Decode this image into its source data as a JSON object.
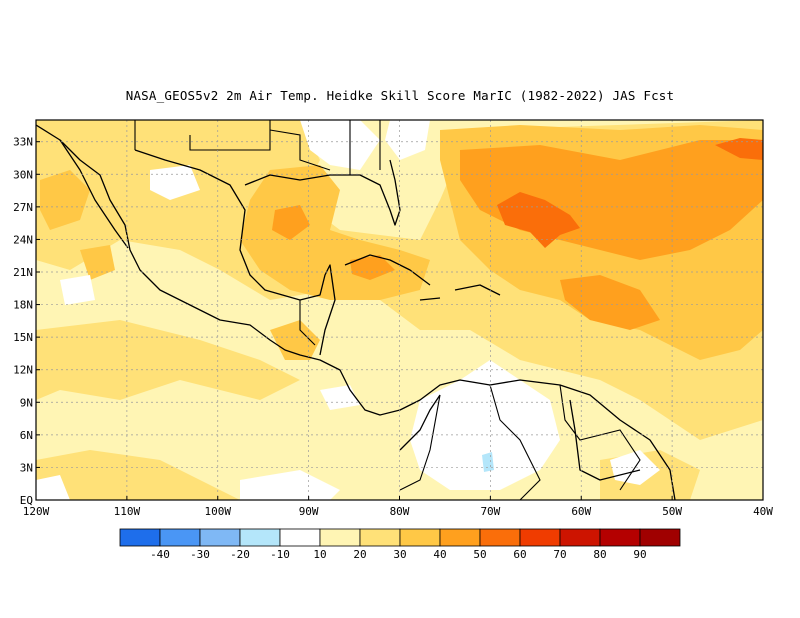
{
  "title": "NASA_GEOS5v2  2m Air Temp. Heidke Skill Score MarIC (1982-2022) JAS Fcst",
  "map": {
    "lat_labels": [
      "33N",
      "30N",
      "27N",
      "24N",
      "21N",
      "18N",
      "15N",
      "12N",
      "9N",
      "6N",
      "3N",
      "EQ"
    ],
    "lat_values": [
      33,
      30,
      27,
      24,
      21,
      18,
      15,
      12,
      9,
      6,
      3,
      0
    ],
    "lon_labels": [
      "120W",
      "110W",
      "100W",
      "90W",
      "80W",
      "70W",
      "60W",
      "50W",
      "40W"
    ],
    "lon_values": [
      -120,
      -110,
      -100,
      -90,
      -80,
      -70,
      -60,
      -50,
      -40
    ],
    "lat_range": [
      0,
      35
    ],
    "lon_range": [
      -120,
      -40
    ],
    "gridlines": "dotted"
  },
  "colorbar": {
    "labels": [
      "-40",
      "-30",
      "-20",
      "-10",
      "10",
      "20",
      "30",
      "40",
      "50",
      "60",
      "70",
      "80",
      "90"
    ],
    "colors": [
      "#1e6eeb",
      "#4a96f5",
      "#7fb8f5",
      "#b4e6fa",
      "#ffffff",
      "#fff5b4",
      "#ffe178",
      "#ffc846",
      "#ffa01e",
      "#fa6e0a",
      "#f03c00",
      "#cd1400",
      "#a00000"
    ]
  },
  "regions": [
    {
      "level": "20-30",
      "color": "#ffe178",
      "area": "broad Gulf of Mexico / Caribbean / subtropical Atlantic"
    },
    {
      "level": "30-40",
      "color": "#ffc846",
      "area": "Gulf of Mexico, western Caribbean, central Atlantic"
    },
    {
      "level": "40-50",
      "color": "#ffa01e",
      "area": "central subtropical Atlantic"
    },
    {
      "level": "50-60",
      "color": "#fa6e0a",
      "area": "Atlantic near 26N 65W"
    },
    {
      "level": "-10-10",
      "color": "#ffffff",
      "area": "northern South America, parts of Mexico"
    }
  ]
}
